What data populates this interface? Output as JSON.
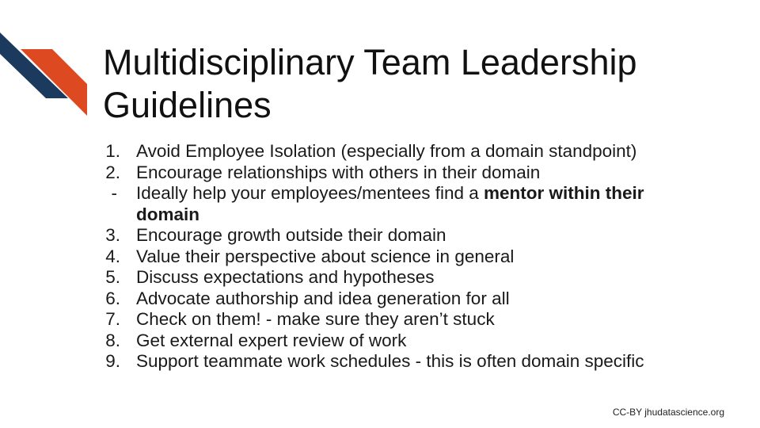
{
  "colors": {
    "navy": "#1c3a5e",
    "orange": "#dd4a21"
  },
  "title": {
    "line1": "Multidisciplinary Team Leadership",
    "line2": "Guidelines"
  },
  "list": [
    {
      "marker": "1.",
      "text": "Avoid Employee Isolation (especially from a domain standpoint)"
    },
    {
      "marker": "2.",
      "text": "Encourage relationships with others in their domain"
    },
    {
      "marker": "-",
      "text_prefix": "Ideally help your employees/mentees find a ",
      "text_bold": "mentor within their domain"
    },
    {
      "marker": "3.",
      "text": "Encourage growth outside their domain"
    },
    {
      "marker": "4.",
      "text": "Value their perspective about science in general"
    },
    {
      "marker": "5.",
      "text": "Discuss expectations and hypotheses"
    },
    {
      "marker": "6.",
      "text": "Advocate authorship and idea generation for all"
    },
    {
      "marker": "7.",
      "text": "Check on them! - make sure they aren’t stuck"
    },
    {
      "marker": "8.",
      "text": "Get external expert review of work"
    },
    {
      "marker": "9.",
      "text": "Support teammate work schedules - this is often domain specific"
    }
  ],
  "footer": "CC-BY jhudatascience.org"
}
